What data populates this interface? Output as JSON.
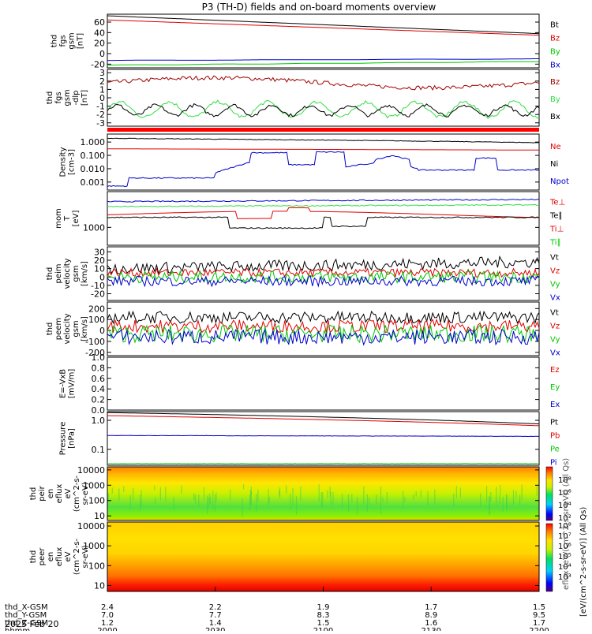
{
  "title": "P3 (TH-D) fields and on-board moments overview",
  "colors": {
    "black": "#000000",
    "red": "#e00000",
    "darkred": "#a00000",
    "green": "#00c800",
    "lightgreen": "#33dd44",
    "blue": "#0000cc",
    "darkgreen": "#008800"
  },
  "panels": [
    {
      "id": "fgs",
      "ylabel": [
        "thd",
        "fgs",
        "gsm",
        "[nT]"
      ],
      "yticks": [
        "60",
        "40",
        "20",
        "0",
        "-20"
      ],
      "tick_values": [
        60,
        40,
        20,
        0,
        -20
      ],
      "ylim": [
        -27,
        75
      ],
      "legend": [
        {
          "label": "Bt",
          "color": "#000000"
        },
        {
          "label": "Bz",
          "color": "#e00000"
        },
        {
          "label": "By",
          "color": "#00c800"
        },
        {
          "label": "Bx",
          "color": "#0000cc"
        }
      ]
    },
    {
      "id": "fgs_dlp",
      "ylabel": [
        "thd",
        "fgs",
        "gsm",
        "-dlp",
        "[nT]"
      ],
      "yticks": [
        "3",
        "2",
        "1",
        "0",
        "-1",
        "-2",
        "-3"
      ],
      "tick_values": [
        3,
        2,
        1,
        0,
        -1,
        -2,
        -3
      ],
      "ylim": [
        -3.4,
        3.4
      ],
      "legend": [
        {
          "label": "Bz",
          "color": "#a00000"
        },
        {
          "label": "By",
          "color": "#33dd44"
        },
        {
          "label": "Bx",
          "color": "#000000"
        }
      ]
    },
    {
      "id": "density",
      "ylabel": [
        "Density",
        "[cm-3]"
      ],
      "yticks": [
        "1.000",
        "0.100",
        "0.010",
        "0.001"
      ],
      "tick_values": [
        0,
        -1,
        -2,
        -3
      ],
      "ylim": [
        -3.6,
        0.6
      ],
      "scale": "log",
      "legend": [
        {
          "label": "Ne",
          "color": "#e00000"
        },
        {
          "label": "Ni",
          "color": "#000000"
        },
        {
          "label": "Npot",
          "color": "#0000cc"
        }
      ]
    },
    {
      "id": "temp",
      "ylabel": [
        "mom",
        "T",
        "[eV]"
      ],
      "yticks": [
        "1000"
      ],
      "tick_values": [
        3
      ],
      "ylim": [
        2.5,
        4.0
      ],
      "scale": "log",
      "legend": [
        {
          "label": "Te⊥",
          "color": "#e00000"
        },
        {
          "label": "Te∥",
          "color": "#000000"
        },
        {
          "label": "Ti⊥",
          "color": "#e00000"
        },
        {
          "label": "Ti∥",
          "color": "#00c800"
        }
      ]
    },
    {
      "id": "peim",
      "ylabel": [
        "thd",
        "peim",
        "velocity",
        "gsm",
        "[km/s]"
      ],
      "yticks": [
        "30",
        "20",
        "10",
        "0",
        "-10",
        "-20"
      ],
      "tick_values": [
        30,
        20,
        10,
        0,
        -10,
        -20
      ],
      "ylim": [
        -28,
        36
      ],
      "legend": [
        {
          "label": "Vt",
          "color": "#000000"
        },
        {
          "label": "Vz",
          "color": "#e00000"
        },
        {
          "label": "Vy",
          "color": "#00c800"
        },
        {
          "label": "Vx",
          "color": "#0000cc"
        }
      ]
    },
    {
      "id": "peem",
      "ylabel": [
        "thd",
        "peem",
        "velocity",
        "gsm",
        "[km/s]"
      ],
      "yticks": [
        "200",
        "100",
        "0",
        "-100",
        "-200"
      ],
      "tick_values": [
        200,
        100,
        0,
        -100,
        -200
      ],
      "ylim": [
        -230,
        260
      ],
      "legend": [
        {
          "label": "Vt",
          "color": "#000000"
        },
        {
          "label": "Vz",
          "color": "#e00000"
        },
        {
          "label": "Vy",
          "color": "#00c800"
        },
        {
          "label": "Vx",
          "color": "#0000cc"
        }
      ]
    },
    {
      "id": "efield",
      "ylabel": [
        "E=-VxB",
        "[mV/m]"
      ],
      "yticks": [
        "1.0",
        "0.8",
        "0.6",
        "0.4",
        "0.2",
        "0.0"
      ],
      "tick_values": [
        1.0,
        0.8,
        0.6,
        0.4,
        0.2,
        0.0
      ],
      "ylim": [
        0.0,
        1.0
      ],
      "legend": [
        {
          "label": "Ez",
          "color": "#e00000"
        },
        {
          "label": "Ey",
          "color": "#00c800"
        },
        {
          "label": "Ex",
          "color": "#0000cc"
        }
      ]
    },
    {
      "id": "pressure",
      "ylabel": [
        "Pressure",
        "[nPa]"
      ],
      "yticks": [
        "1.0",
        "0.1"
      ],
      "tick_values": [
        0,
        -1
      ],
      "ylim": [
        -1.55,
        0.3
      ],
      "scale": "log",
      "legend": [
        {
          "label": "Pt",
          "color": "#000000"
        },
        {
          "label": "Pb",
          "color": "#e00000"
        },
        {
          "label": "Pe",
          "color": "#00c800"
        },
        {
          "label": "Pi",
          "color": "#0000cc"
        }
      ]
    },
    {
      "id": "peir",
      "ylabel": [
        "thd",
        "peir",
        "en",
        "eflux",
        "eV",
        "(cm^2-s-",
        "sr-eV)"
      ],
      "yticks": [
        "10000",
        "1000",
        "100",
        "10"
      ],
      "tick_values": [
        4,
        3,
        2,
        1
      ],
      "ylim": [
        0.7,
        4.2
      ],
      "scale": "log"
    },
    {
      "id": "peer",
      "ylabel": [
        "thd",
        "peer",
        "en",
        "eflux",
        "eV",
        "(cm^2-s-",
        "sr-eV)"
      ],
      "yticks": [
        "10000",
        "1000",
        "100",
        "10"
      ],
      "tick_values": [
        4,
        3,
        2,
        1
      ],
      "ylim": [
        0.7,
        4.2
      ],
      "scale": "log"
    }
  ],
  "colorbar": {
    "ticks_top": [
      "10⁸",
      "10⁶",
      "10⁴",
      "10²"
    ],
    "ticks_bottom": [
      "10⁸",
      "10⁷",
      "10⁶",
      "10⁵",
      "10⁴",
      "10³"
    ],
    "label": "[eV/(cm^2-s-sr-eV)] (All Qs)",
    "label_overlay": "eflux (eV/(cm^2-s-sr-eV)) (All Qs)"
  },
  "xaxis": {
    "rows": [
      {
        "label": "thd_X-GSM",
        "values": [
          "2.4",
          "2.2",
          "1.9",
          "1.7",
          "1.5"
        ]
      },
      {
        "label": "thd_Y-GSM",
        "values": [
          "7.0",
          "7.7",
          "8.3",
          "8.9",
          "9.5"
        ]
      },
      {
        "label": "thd_Z-GSM",
        "values": [
          "1.2",
          "1.4",
          "1.5",
          "1.6",
          "1.7"
        ]
      },
      {
        "label": "hhmm",
        "values": [
          "2000",
          "2030",
          "2100",
          "2130",
          "2200"
        ]
      }
    ],
    "date": "2025 Feb 20"
  },
  "chart_data": {
    "type": "line",
    "x_range": [
      "2000",
      "2200"
    ],
    "series_trends": {
      "Bt": [
        72,
        38
      ],
      "Bz": [
        64,
        35
      ],
      "By": [
        -22,
        -14
      ],
      "Bx": [
        -13,
        -10
      ],
      "Ne": [
        0.31,
        0.25
      ],
      "Ni": [
        1.9,
        0.9
      ],
      "Npot_peak": 0.2,
      "Pt": [
        1.85,
        0.75
      ],
      "Pb": [
        1.45,
        0.65
      ],
      "Pe": [
        0.3,
        0.28
      ],
      "Pi": [
        0.03,
        0.03
      ]
    }
  }
}
